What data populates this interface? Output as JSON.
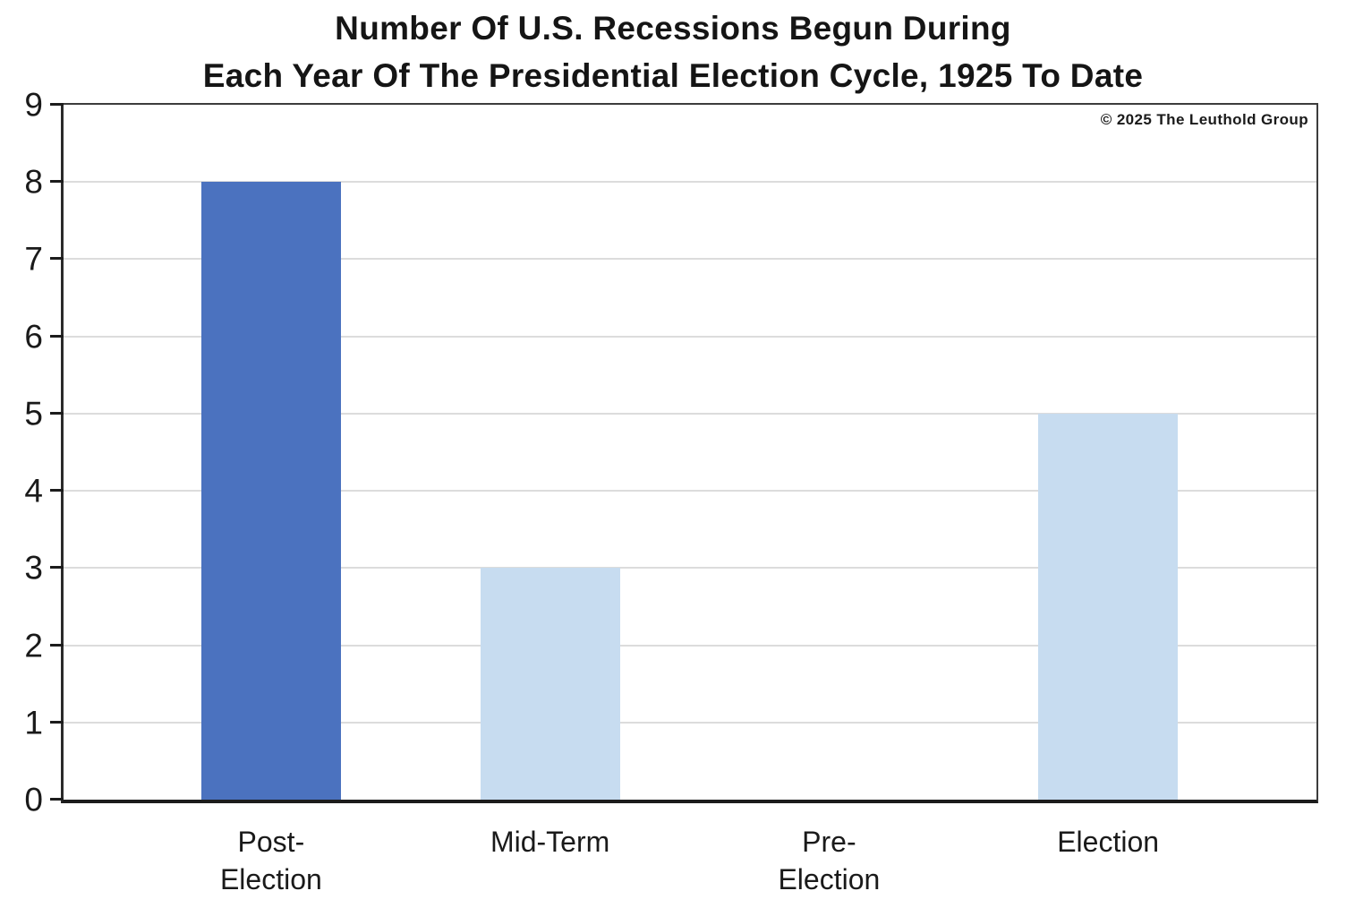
{
  "title": {
    "line1": "Number Of U.S. Recessions Begun During",
    "line2": "Each Year Of The Presidential Election Cycle, 1925 To Date"
  },
  "copyright": "© 2025 The Leuthold Group",
  "colors": {
    "bar_dark_blue": "#4B72BF",
    "bar_light_blue": "#C7DCF0",
    "gridline": "#DCDCDC",
    "frame": "#3C3C3C",
    "text": "#1A1A1A",
    "background": "#FFFFFF"
  },
  "chart_data": {
    "type": "bar",
    "title": "Number Of U.S. Recessions Begun During Each Year Of The Presidential Election Cycle, 1925 To Date",
    "categories": [
      "Post-\nElection",
      "Mid-Term",
      "Pre-\nElection",
      "Election"
    ],
    "values": [
      8,
      3,
      0,
      5
    ],
    "bar_colors": [
      "#4B72BF",
      "#C7DCF0",
      "#C7DCF0",
      "#C7DCF0"
    ],
    "xlabel": "",
    "ylabel": "",
    "ylim": [
      0,
      9
    ],
    "yticks": [
      0,
      1,
      2,
      3,
      4,
      5,
      6,
      7,
      8,
      9
    ],
    "grid": "horizontal-gridlines-on",
    "legend": "none",
    "annotations": [
      "© 2025 The Leuthold Group"
    ]
  }
}
